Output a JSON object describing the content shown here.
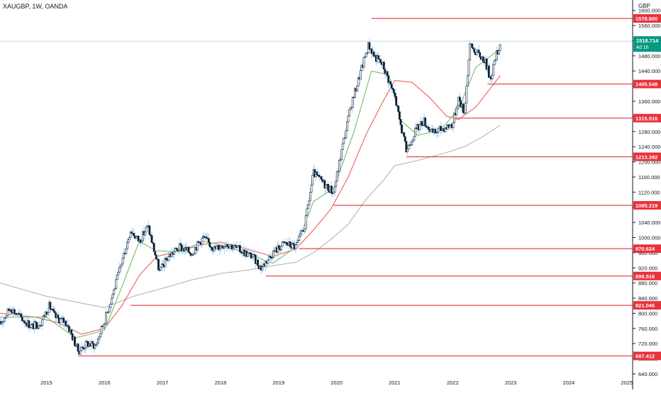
{
  "header": {
    "title": "XAUGBP, 1W, OANDA",
    "currency": "GBP"
  },
  "chart_data": {
    "type": "candlestick",
    "symbol": "XAUGBP",
    "timeframe": "1W",
    "source": "OANDA",
    "currency": "GBP",
    "ylim": [
      640,
      1620
    ],
    "xlim": [
      2014.2,
      2025.1
    ],
    "y_ticks": [
      640,
      680,
      720,
      760,
      800,
      840,
      880,
      920,
      960,
      1000,
      1040,
      1080,
      1120,
      1160,
      1200,
      1240,
      1280,
      1320,
      1360,
      1400,
      1440,
      1480,
      1520,
      1560,
      1600
    ],
    "y_tick_labels": [
      "640.000",
      "680.000",
      "720.000",
      "760.000",
      "800.000",
      "840.000",
      "880.000",
      "920.000",
      "960.000",
      "1000.000",
      "1040.000",
      "1080.000",
      "1120.000",
      "1160.000",
      "1200.000",
      "1240.000",
      "1280.000",
      "1320.000",
      "1360.000",
      "1400.000",
      "1440.000",
      "1480.000",
      "1520.000",
      "1560.000",
      "1600.000"
    ],
    "x_ticks": [
      2015,
      2016,
      2017,
      2018,
      2019,
      2020,
      2021,
      2022,
      2023,
      2024,
      2025
    ],
    "x_tick_labels": [
      "2015",
      "2016",
      "2017",
      "2018",
      "2019",
      "2020",
      "2021",
      "2022",
      "2023",
      "2024",
      "2025"
    ],
    "last_price": {
      "value": 1518.714,
      "label": "1518.714",
      "countdown": "4d 1h",
      "color": "#089981"
    },
    "levels": [
      {
        "label": "1578.800",
        "value": 1578.8,
        "start": 2020.6
      },
      {
        "label": "1405.548",
        "value": 1405.548,
        "start": 2022.6
      },
      {
        "label": "1315.516",
        "value": 1315.516,
        "start": 2022.05
      },
      {
        "label": "1213.392",
        "value": 1213.392,
        "start": 2021.2
      },
      {
        "label": "1085.219",
        "value": 1085.219,
        "start": 2019.95
      },
      {
        "label": "970.624",
        "value": 970.624,
        "start": 2019.35
      },
      {
        "label": "898.516",
        "value": 898.516,
        "start": 2018.78
      },
      {
        "label": "821.046",
        "value": 821.046,
        "start": 2016.45
      },
      {
        "label": "687.412",
        "value": 687.412,
        "start": 2015.55
      }
    ],
    "series": [
      {
        "type": "candles",
        "knots": [
          [
            2014.2,
            770
          ],
          [
            2014.38,
            815
          ],
          [
            2014.55,
            790
          ],
          [
            2014.75,
            765
          ],
          [
            2014.9,
            775
          ],
          [
            2015.05,
            820
          ],
          [
            2015.15,
            790
          ],
          [
            2015.35,
            775
          ],
          [
            2015.55,
            700
          ],
          [
            2015.7,
            720
          ],
          [
            2015.85,
            715
          ],
          [
            2016.0,
            780
          ],
          [
            2016.2,
            880
          ],
          [
            2016.45,
            1020
          ],
          [
            2016.6,
            990
          ],
          [
            2016.75,
            1030
          ],
          [
            2016.95,
            910
          ],
          [
            2017.1,
            950
          ],
          [
            2017.3,
            975
          ],
          [
            2017.5,
            960
          ],
          [
            2017.7,
            1000
          ],
          [
            2017.9,
            970
          ],
          [
            2018.1,
            985
          ],
          [
            2018.3,
            970
          ],
          [
            2018.55,
            950
          ],
          [
            2018.7,
            920
          ],
          [
            2018.9,
            960
          ],
          [
            2019.1,
            985
          ],
          [
            2019.3,
            975
          ],
          [
            2019.45,
            1030
          ],
          [
            2019.6,
            1170
          ],
          [
            2019.8,
            1140
          ],
          [
            2019.95,
            1120
          ],
          [
            2020.1,
            1240
          ],
          [
            2020.25,
            1350
          ],
          [
            2020.4,
            1430
          ],
          [
            2020.55,
            1510
          ],
          [
            2020.65,
            1480
          ],
          [
            2020.8,
            1455
          ],
          [
            2021.0,
            1375
          ],
          [
            2021.1,
            1300
          ],
          [
            2021.2,
            1230
          ],
          [
            2021.35,
            1280
          ],
          [
            2021.5,
            1310
          ],
          [
            2021.65,
            1275
          ],
          [
            2021.85,
            1290
          ],
          [
            2022.0,
            1300
          ],
          [
            2022.1,
            1370
          ],
          [
            2022.2,
            1330
          ],
          [
            2022.3,
            1510
          ],
          [
            2022.4,
            1490
          ],
          [
            2022.55,
            1470
          ],
          [
            2022.65,
            1420
          ],
          [
            2022.75,
            1480
          ],
          [
            2022.83,
            1518.714
          ]
        ]
      },
      {
        "type": "moving_average",
        "color": "#b5b5b5",
        "knots": [
          [
            2014.2,
            880
          ],
          [
            2015.0,
            845
          ],
          [
            2015.5,
            830
          ],
          [
            2016.0,
            815
          ],
          [
            2016.5,
            845
          ],
          [
            2017.0,
            866
          ],
          [
            2017.5,
            888
          ],
          [
            2018.0,
            905
          ],
          [
            2018.5,
            915
          ],
          [
            2019.0,
            928
          ],
          [
            2019.3,
            935
          ],
          [
            2019.6,
            960
          ],
          [
            2019.9,
            995
          ],
          [
            2020.2,
            1035
          ],
          [
            2020.5,
            1100
          ],
          [
            2020.8,
            1150
          ],
          [
            2021.0,
            1190
          ],
          [
            2021.3,
            1200
          ],
          [
            2021.6,
            1212
          ],
          [
            2021.9,
            1225
          ],
          [
            2022.2,
            1240
          ],
          [
            2022.5,
            1265
          ],
          [
            2022.83,
            1298
          ]
        ]
      },
      {
        "type": "moving_average",
        "color": "#f15b5b",
        "knots": [
          [
            2014.2,
            800
          ],
          [
            2014.8,
            790
          ],
          [
            2015.2,
            775
          ],
          [
            2015.6,
            745
          ],
          [
            2016.0,
            760
          ],
          [
            2016.3,
            820
          ],
          [
            2016.6,
            900
          ],
          [
            2016.9,
            950
          ],
          [
            2017.3,
            965
          ],
          [
            2017.7,
            982
          ],
          [
            2018.0,
            988
          ],
          [
            2018.5,
            968
          ],
          [
            2018.9,
            950
          ],
          [
            2019.3,
            970
          ],
          [
            2019.6,
            1020
          ],
          [
            2019.9,
            1075
          ],
          [
            2020.2,
            1160
          ],
          [
            2020.5,
            1270
          ],
          [
            2020.8,
            1360
          ],
          [
            2021.0,
            1415
          ],
          [
            2021.3,
            1410
          ],
          [
            2021.6,
            1370
          ],
          [
            2021.9,
            1320
          ],
          [
            2022.1,
            1312
          ],
          [
            2022.4,
            1345
          ],
          [
            2022.83,
            1430
          ]
        ]
      },
      {
        "type": "moving_average",
        "color": "#6abf6a",
        "knots": [
          [
            2014.2,
            790
          ],
          [
            2015.0,
            790
          ],
          [
            2015.5,
            735
          ],
          [
            2016.0,
            755
          ],
          [
            2016.3,
            870
          ],
          [
            2016.6,
            990
          ],
          [
            2016.9,
            965
          ],
          [
            2017.3,
            962
          ],
          [
            2017.7,
            990
          ],
          [
            2018.1,
            978
          ],
          [
            2018.5,
            955
          ],
          [
            2018.9,
            932
          ],
          [
            2019.3,
            975
          ],
          [
            2019.6,
            1095
          ],
          [
            2019.95,
            1130
          ],
          [
            2020.3,
            1280
          ],
          [
            2020.6,
            1440
          ],
          [
            2020.9,
            1430
          ],
          [
            2021.1,
            1310
          ],
          [
            2021.4,
            1270
          ],
          [
            2021.8,
            1285
          ],
          [
            2022.1,
            1340
          ],
          [
            2022.4,
            1450
          ],
          [
            2022.83,
            1500
          ]
        ]
      }
    ]
  }
}
